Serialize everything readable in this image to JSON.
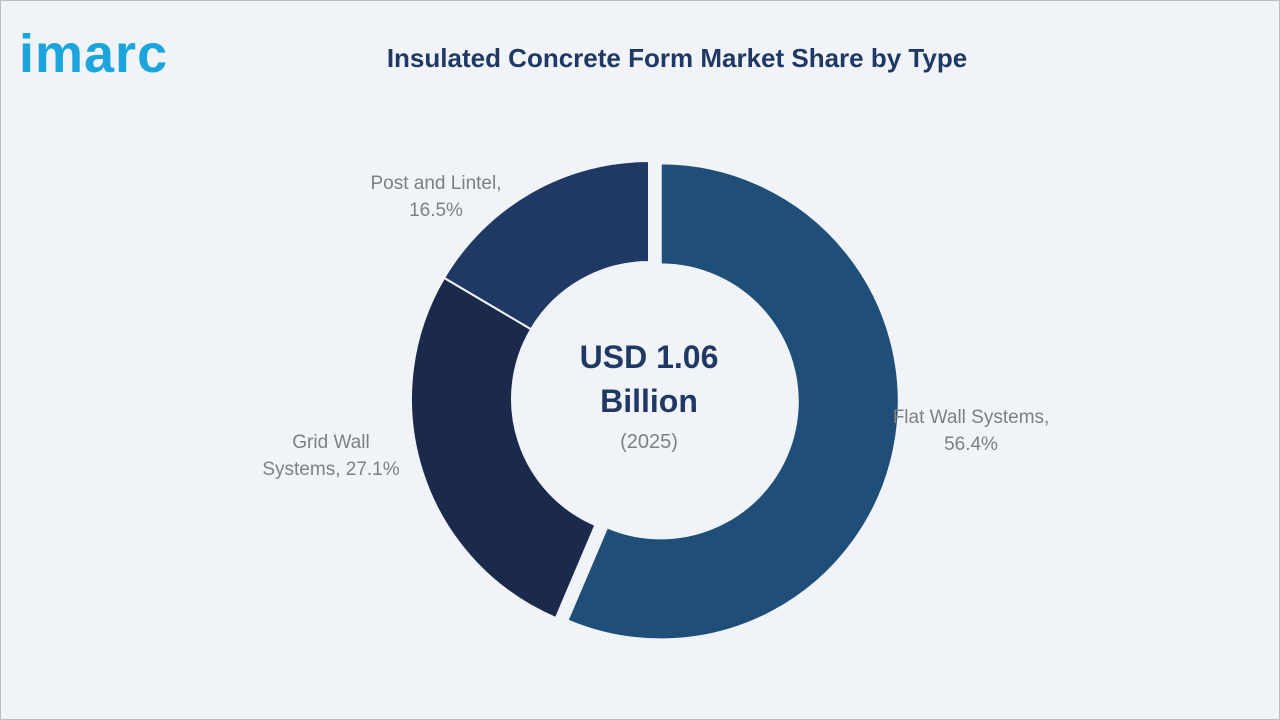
{
  "logo": "imarc",
  "chart_data": {
    "type": "donut",
    "title": "Insulated Concrete Form Market Share by Type",
    "center_label": "USD 1.06 Billion",
    "center_sublabel": "(2025)",
    "values": [
      56.4,
      27.1,
      16.5
    ],
    "value_labels": [
      "Flat Wall Systems, 56.4%",
      "Grid Wall Systems, 27.1%",
      "Post and Lintel, 16.5%"
    ],
    "colors": [
      "#1f4e79",
      "#1b2a4a",
      "#203864"
    ]
  }
}
